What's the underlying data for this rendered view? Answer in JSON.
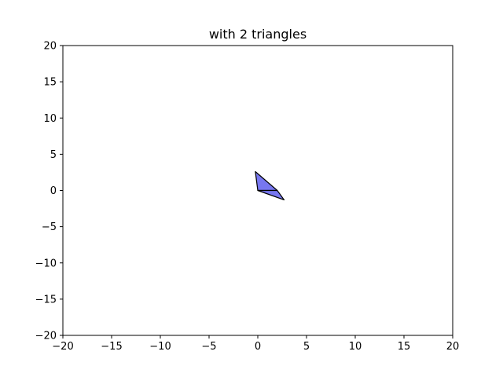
{
  "chart_data": {
    "type": "polygon",
    "title": "with 2 triangles",
    "xlabel": "",
    "ylabel": "",
    "xlim": [
      -20,
      20
    ],
    "ylim": [
      -20,
      20
    ],
    "xticks": [
      -20,
      -15,
      -10,
      -5,
      0,
      5,
      10,
      15,
      20
    ],
    "yticks": [
      -20,
      -15,
      -10,
      -5,
      0,
      5,
      10,
      15,
      20
    ],
    "xtick_labels": [
      "−20",
      "−15",
      "−10",
      "−5",
      "0",
      "5",
      "10",
      "15",
      "20"
    ],
    "ytick_labels": [
      "−20",
      "−15",
      "−10",
      "−5",
      "0",
      "5",
      "10",
      "15",
      "20"
    ],
    "grid": false,
    "triangles": [
      {
        "vertices": [
          [
            0,
            0
          ],
          [
            -0.25,
            2.6
          ],
          [
            2,
            0
          ]
        ]
      },
      {
        "vertices": [
          [
            0,
            0
          ],
          [
            2,
            0
          ],
          [
            2.7,
            -1.3
          ]
        ]
      }
    ],
    "colors": {
      "face": "#7777f0",
      "edge": "#000000",
      "axes": "#000000",
      "background": "#ffffff"
    }
  }
}
